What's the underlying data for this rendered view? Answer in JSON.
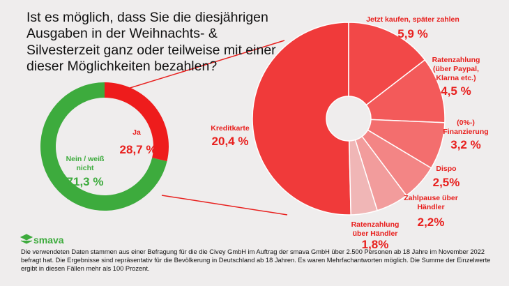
{
  "chart_data": [
    {
      "type": "donut",
      "title": "Ist es möglich, dass Sie die diesjährigen Ausgaben in der Weihnachts- & Silvesterzeit ganz oder teilweise mit einer dieser Möglichkeiten bezahlen?",
      "categories": [
        "Ja",
        "Nein / weiß nicht"
      ],
      "values": [
        28.7,
        71.3
      ],
      "value_labels": [
        "28,7 %",
        "71,3 %"
      ],
      "colors": [
        "#ee1c1c",
        "#3dab3d"
      ]
    },
    {
      "type": "donut",
      "categories": [
        "Kreditkarte",
        "Jetzt kaufen, später zahlen",
        "Ratenzahlung (über Paypal, Klarna etc.)",
        "(0%-) Finanzierung",
        "Dispo",
        "Zahlpause über Händler",
        "Ratenzahlung über Händler"
      ],
      "values": [
        20.4,
        5.9,
        4.5,
        3.2,
        2.5,
        2.2,
        1.8
      ],
      "value_labels": [
        "20,4 %",
        "5,9 %",
        "4,5 %",
        "3,2 %",
        "2,5%",
        "2,2%",
        "1,8%"
      ],
      "colors": [
        "#f03a3a",
        "#f24848",
        "#f35a5a",
        "#f36e6e",
        "#f38585",
        "#f29c9c",
        "#f0b6b6"
      ]
    }
  ],
  "footer": {
    "brand": "smava",
    "note": "Die verwendeten Daten stammen aus einer Befragung für die die Civey GmbH im Auftrag der smava GmbH über 2.500 Personen ab 18 Jahre im November 2022 befragt hat. Die Ergebnisse sind repräsentativ für die Bevölkerung in Deutschland ab 18 Jahren. Es waren Mehrfachantworten möglich. Die Summe der Einzelwerte ergibt in diesen Fällen mehr als 100 Prozent."
  }
}
